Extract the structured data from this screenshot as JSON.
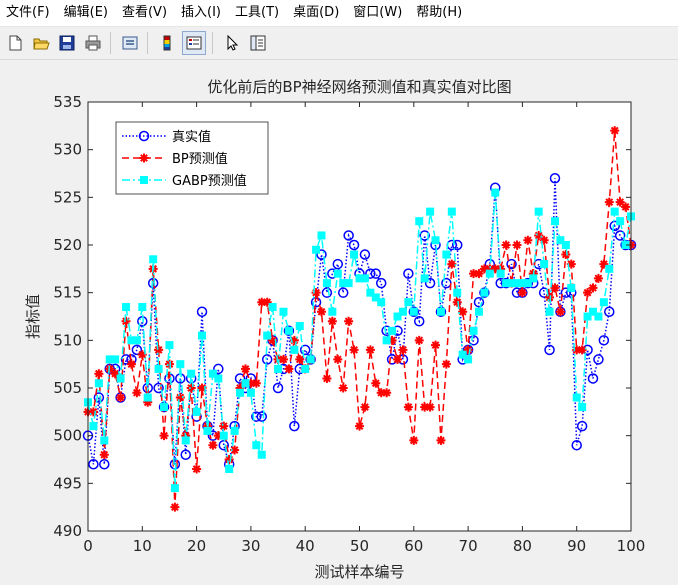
{
  "menubar": {
    "items": [
      "文件(F)",
      "编辑(E)",
      "查看(V)",
      "插入(I)",
      "工具(T)",
      "桌面(D)",
      "窗口(W)",
      "帮助(H)"
    ]
  },
  "toolbar": {
    "buttons": [
      "new-file-icon",
      "open-folder-icon",
      "save-icon",
      "print-icon",
      "link-icon",
      "colorbar-icon",
      "legend-icon",
      "pointer-icon",
      "property-editor-icon"
    ]
  },
  "chart_data": {
    "type": "line",
    "title": "优化前后的BP神经网络预测值和真实值对比图",
    "xlabel": "测试样本编号",
    "ylabel": "指标值",
    "xlim": [
      0,
      100
    ],
    "ylim": [
      490,
      535
    ],
    "xticks": [
      0,
      10,
      20,
      30,
      40,
      50,
      60,
      70,
      80,
      90,
      100
    ],
    "yticks": [
      490,
      495,
      500,
      505,
      510,
      515,
      520,
      525,
      530,
      535
    ],
    "grid": false,
    "legend_position": "top-left",
    "series": [
      {
        "name": "真实值",
        "color": "#0000ff",
        "marker": "circle",
        "line": "dotted",
        "values": [
          500,
          497,
          504,
          497,
          507,
          507,
          504,
          508,
          508,
          509,
          512,
          505,
          516,
          505,
          503,
          506,
          497,
          506,
          498,
          506,
          502,
          513,
          501,
          500,
          507,
          499,
          497,
          501,
          506,
          505,
          506,
          502,
          502,
          508,
          510,
          505,
          507,
          511,
          501,
          507,
          509,
          508,
          514,
          519,
          515,
          517,
          518,
          515,
          521,
          520,
          517,
          519,
          517,
          517,
          516,
          511,
          508,
          511,
          508,
          517,
          513,
          512,
          521,
          516,
          520,
          513,
          516,
          520,
          520,
          508,
          509,
          510,
          514,
          515,
          518,
          526,
          516,
          516,
          518,
          515,
          515,
          516,
          516,
          518,
          515,
          509,
          527,
          513,
          515,
          515,
          499,
          501,
          509,
          506,
          508,
          510,
          513,
          522,
          521,
          520,
          520
        ]
      },
      {
        "name": "BP预测值",
        "color": "#ff0000",
        "marker": "star",
        "line": "dashed",
        "values": [
          502.5,
          502.5,
          506.5,
          498,
          507,
          506.5,
          504,
          512,
          507.5,
          504.5,
          508.5,
          503.5,
          517.5,
          509,
          500,
          507.5,
          492.5,
          504,
          500,
          505,
          496.5,
          505,
          501,
          499,
          500,
          501,
          497.5,
          498.5,
          505,
          507,
          505.5,
          505.5,
          514,
          514,
          510,
          508,
          508,
          507,
          510,
          508,
          507,
          508,
          515,
          513,
          506,
          512,
          508,
          505,
          512,
          509,
          501,
          503,
          509,
          505.5,
          504.5,
          504.5,
          510,
          508,
          509,
          503,
          499.5,
          510,
          503,
          503,
          509.5,
          499.5,
          507.5,
          518,
          514,
          513,
          509,
          517,
          517,
          517.5,
          517.5,
          517.5,
          517.5,
          520,
          516,
          520,
          515,
          520.5,
          517,
          521,
          520.5,
          514.5,
          515.5,
          513,
          519,
          518,
          509,
          509,
          515,
          515.5,
          516.5,
          518,
          524.5,
          532,
          524.5,
          524,
          520
        ]
      },
      {
        "name": "GABP预测值",
        "color": "#00ffff",
        "marker": "square",
        "line": "dashdot",
        "values": [
          503.5,
          501,
          505.5,
          499.5,
          508,
          508,
          506,
          513.5,
          510,
          510,
          513.5,
          504,
          518.5,
          507,
          503,
          509.5,
          494.5,
          507.5,
          499.5,
          506.5,
          502.5,
          510.5,
          500.5,
          506.5,
          506,
          500,
          496.5,
          500.5,
          504.5,
          505.5,
          504.5,
          499,
          498,
          510.5,
          513.5,
          507,
          513,
          511,
          509,
          511.5,
          507,
          508,
          519.5,
          521,
          516,
          513,
          517,
          516,
          516,
          519,
          516.5,
          516.5,
          515,
          514.5,
          514,
          510,
          511,
          512.5,
          513,
          514,
          513,
          522.5,
          516.5,
          523.5,
          520.5,
          513,
          519,
          523.5,
          515,
          508.5,
          508,
          511,
          513,
          515,
          517,
          525.5,
          517,
          516,
          516,
          516,
          516,
          516,
          516.5,
          523.5,
          518,
          513,
          522.5,
          520.5,
          520,
          515.5,
          504,
          503,
          512.5,
          513,
          512.5,
          514,
          517.5,
          523.5,
          522.5,
          520,
          523
        ]
      }
    ]
  }
}
